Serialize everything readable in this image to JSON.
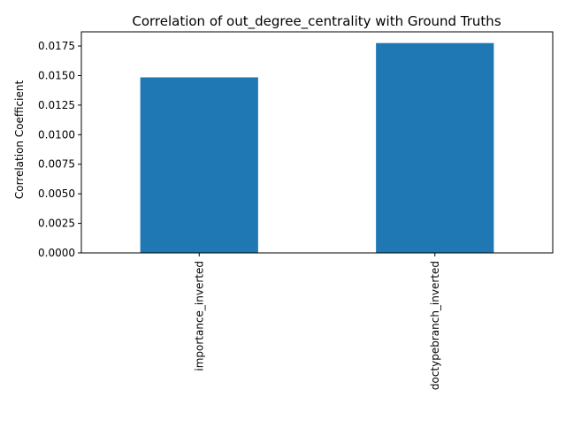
{
  "chart_data": {
    "type": "bar",
    "title": "Correlation of out_degree_centrality with Ground Truths",
    "xlabel": "",
    "ylabel": "Correlation Coefficient",
    "categories": [
      "importance_inverted",
      "doctypebranch_inverted"
    ],
    "values": [
      0.01485,
      0.01775
    ],
    "ylim": [
      0,
      0.0187
    ],
    "yticks": [
      0.0,
      0.0025,
      0.005,
      0.0075,
      0.01,
      0.0125,
      0.015,
      0.0175
    ],
    "ytick_labels": [
      "0.0000",
      "0.0025",
      "0.0050",
      "0.0075",
      "0.0100",
      "0.0125",
      "0.0150",
      "0.0175"
    ],
    "grid": false,
    "legend": "none",
    "bar_color": "#1f77b4",
    "axis_color": "#000000"
  }
}
